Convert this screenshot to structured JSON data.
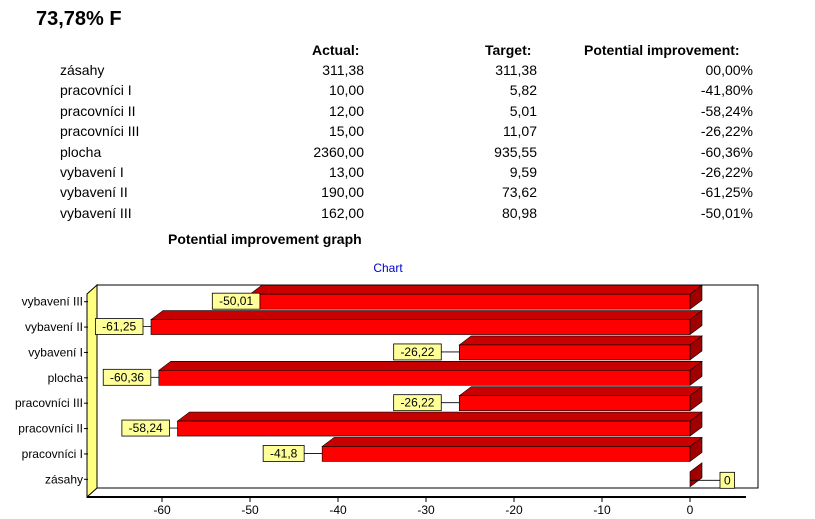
{
  "score_title": "73,78% F",
  "table": {
    "headers": {
      "actual": "Actual:",
      "target": "Target:",
      "potential": "Potential improvement:"
    },
    "rows": [
      {
        "name": "zásahy",
        "actual": "311,38",
        "target": "311,38",
        "potential": "00,00%"
      },
      {
        "name": "pracovníci I",
        "actual": "10,00",
        "target": "5,82",
        "potential": "-41,80%"
      },
      {
        "name": "pracovníci II",
        "actual": "12,00",
        "target": "5,01",
        "potential": "-58,24%"
      },
      {
        "name": "pracovníci III",
        "actual": "15,00",
        "target": "11,07",
        "potential": "-26,22%"
      },
      {
        "name": "plocha",
        "actual": "2360,00",
        "target": "935,55",
        "potential": "-60,36%"
      },
      {
        "name": "vybavení I",
        "actual": "13,00",
        "target": "9,59",
        "potential": "-26,22%"
      },
      {
        "name": "vybavení II",
        "actual": "190,00",
        "target": "73,62",
        "potential": "-61,25%"
      },
      {
        "name": "vybavení III",
        "actual": "162,00",
        "target": "80,98",
        "potential": "-50,01%"
      }
    ]
  },
  "graph_title": "Potential improvement graph",
  "colors": {
    "bar": "#ff0000",
    "bar_top": "#c80000",
    "bar_side": "#a00000",
    "label_bg": "#ffff99",
    "wall": "#ffff80",
    "chart_title": "#0000cc"
  },
  "chart_data": {
    "type": "bar",
    "orientation": "horizontal",
    "title": "Chart",
    "categories": [
      "zásahy",
      "pracovníci I",
      "pracovníci II",
      "pracovníci III",
      "plocha",
      "vybavení I",
      "vybavení II",
      "vybavení III"
    ],
    "values": [
      0,
      -41.8,
      -58.24,
      -26.22,
      -60.36,
      -26.22,
      -61.25,
      -50.01
    ],
    "data_labels": [
      "0",
      "-41,8",
      "-58,24",
      "-26,22",
      "-60,36",
      "-26,22",
      "-61,25",
      "-50,01"
    ],
    "xlim": [
      -70,
      0
    ],
    "xticks": [
      -60,
      -50,
      -40,
      -30,
      -20,
      -10,
      0
    ],
    "grid": false,
    "legend": "none"
  }
}
